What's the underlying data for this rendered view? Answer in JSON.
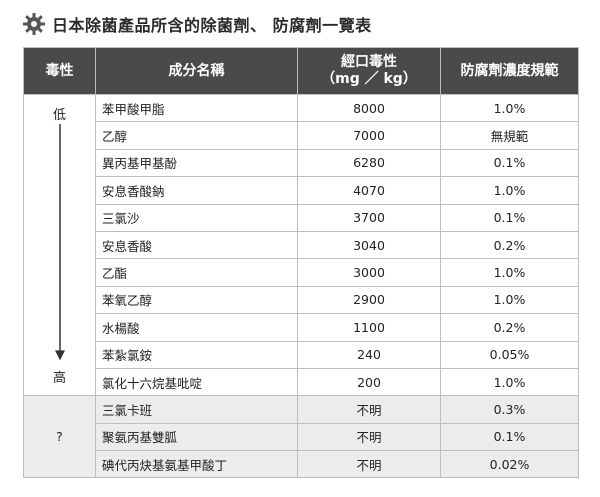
{
  "title": "日本除菌產品所含的除菌劑、 防腐劑一覽表",
  "icon": "gear-icon",
  "colors": {
    "header_bg": "#4a4a4a",
    "unknown_bg": "#ececec",
    "border": "#bdbdbd"
  },
  "headers": {
    "toxicity": "毒性",
    "ingredient": "成分名稱",
    "oral_line1": "經口毒性",
    "oral_line2": "（mg ／ kg）",
    "concentration": "防腐劑濃度規範"
  },
  "toxicity_scale": {
    "low": "低",
    "high": "高",
    "unknown": "?"
  },
  "rows": [
    {
      "name": "苯甲酸甲脂",
      "oral": "8000",
      "conc": "1.0%"
    },
    {
      "name": "乙醇",
      "oral": "7000",
      "conc": "無規範"
    },
    {
      "name": "異丙基甲基酚",
      "oral": "6280",
      "conc": "0.1%"
    },
    {
      "name": "安息香酸鈉",
      "oral": "4070",
      "conc": "1.0%"
    },
    {
      "name": "三氯沙",
      "oral": "3700",
      "conc": "0.1%"
    },
    {
      "name": "安息香酸",
      "oral": "3040",
      "conc": "0.2%"
    },
    {
      "name": "乙酯",
      "oral": "3000",
      "conc": "1.0%"
    },
    {
      "name": "苯氧乙醇",
      "oral": "2900",
      "conc": "1.0%"
    },
    {
      "name": "水楊酸",
      "oral": "1100",
      "conc": "0.2%"
    },
    {
      "name": "苯紮氯銨",
      "oral": "240",
      "conc": "0.05%"
    },
    {
      "name": "氯化十六烷基吡啶",
      "oral": "200",
      "conc": "1.0%"
    }
  ],
  "unknown_rows": [
    {
      "name": "三氯卡班",
      "oral": "不明",
      "conc": "0.3%"
    },
    {
      "name": "聚氨丙基雙胍",
      "oral": "不明",
      "conc": "0.1%"
    },
    {
      "name": "碘代丙炔基氨基甲酸丁",
      "oral": "不明",
      "conc": "0.02%"
    }
  ]
}
